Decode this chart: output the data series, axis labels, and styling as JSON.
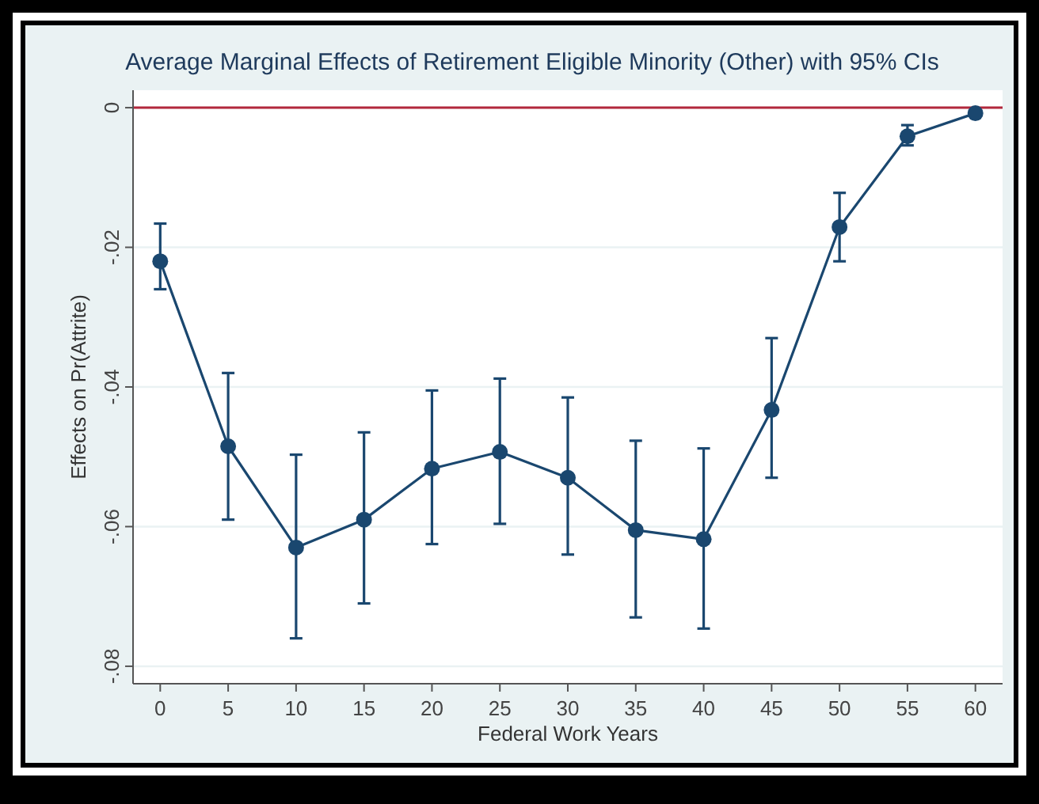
{
  "chart_data": {
    "type": "line",
    "title": "Average Marginal Effects of Retirement Eligible Minority (Other) with 95% CIs",
    "xlabel": "Federal Work Years",
    "ylabel": "Effects on Pr(Attrite)",
    "x": [
      0,
      5,
      10,
      15,
      20,
      25,
      30,
      35,
      40,
      45,
      50,
      55,
      60
    ],
    "series": [
      {
        "color": "#1a476f",
        "values": [
          -0.022,
          -0.0485,
          -0.063,
          -0.059,
          -0.0517,
          -0.0493,
          -0.053,
          -0.0605,
          -0.0618,
          -0.0433,
          -0.0171,
          -0.0041,
          -0.0008
        ],
        "errors": [
          [
            -0.026,
            -0.0166
          ],
          [
            -0.059,
            -0.038
          ],
          [
            -0.076,
            -0.0497
          ],
          [
            -0.071,
            -0.0465
          ],
          [
            -0.0625,
            -0.0405
          ],
          [
            -0.0596,
            -0.0388
          ],
          [
            -0.064,
            -0.0415
          ],
          [
            -0.073,
            -0.0477
          ],
          [
            -0.0746,
            -0.0488
          ],
          [
            -0.053,
            -0.033
          ],
          [
            -0.022,
            -0.0122
          ],
          [
            -0.0054,
            -0.0025
          ],
          null
        ]
      }
    ],
    "xlim": [
      -2,
      62
    ],
    "xticks": [
      0,
      5,
      10,
      15,
      20,
      25,
      30,
      35,
      40,
      45,
      50,
      55,
      60
    ],
    "ylim": [
      -0.0825,
      0.0025
    ],
    "yticks": [
      {
        "value": 0,
        "label": "0"
      },
      {
        "value": -0.02,
        "label": "-.02"
      },
      {
        "value": -0.04,
        "label": "-.04"
      },
      {
        "value": -0.06,
        "label": "-.06"
      },
      {
        "value": -0.08,
        "label": "-.08"
      }
    ],
    "grid": "y",
    "marker": "circle",
    "line_style": "solid",
    "ref_lines": [
      {
        "axis": "y",
        "value": 0,
        "color": "#b2283c"
      }
    ]
  }
}
